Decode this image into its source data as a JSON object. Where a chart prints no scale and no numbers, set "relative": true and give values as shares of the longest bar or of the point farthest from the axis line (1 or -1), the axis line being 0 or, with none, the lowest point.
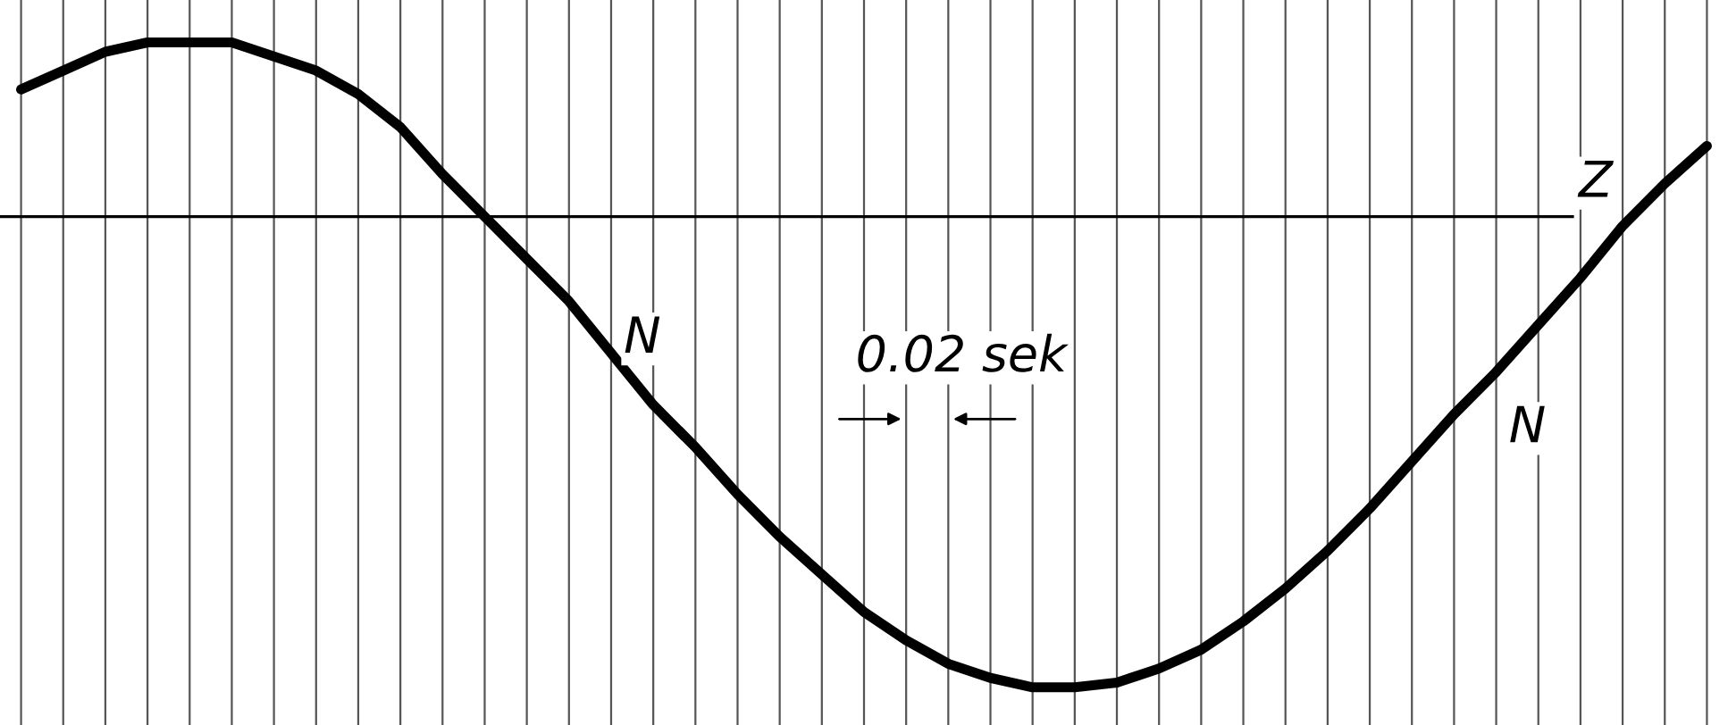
{
  "chart_data": {
    "type": "line",
    "relative": true,
    "grid": "x",
    "marker": "none",
    "line_style": "solid",
    "categories": [
      null,
      null,
      null,
      null,
      null,
      null,
      null,
      null,
      null,
      null,
      null,
      null,
      null,
      null,
      null,
      null,
      null,
      null,
      null,
      null,
      null,
      null,
      null,
      null,
      null,
      null,
      null,
      null,
      null,
      null,
      null,
      null,
      null,
      null,
      null,
      null,
      null,
      null,
      null,
      null,
      null
    ],
    "series": [
      {
        "color": "#000000",
        "values": [
          0.27,
          0.31,
          0.35,
          0.37,
          0.37,
          0.37,
          0.34,
          0.31,
          0.26,
          0.19,
          0.09,
          0.0,
          -0.09,
          -0.18,
          -0.29,
          -0.4,
          -0.49,
          -0.59,
          -0.68,
          -0.76,
          -0.84,
          -0.9,
          -0.95,
          -0.98,
          -1,
          -1,
          -0.99,
          -0.96,
          -0.92,
          -0.86,
          -0.79,
          -0.71,
          -0.62,
          -0.52,
          -0.42,
          -0.33,
          -0.23,
          -0.13,
          -0.02,
          0.07,
          0.15
        ]
      }
    ],
    "ref_lines": [
      {
        "axis": "y",
        "value": 0,
        "label": "Z",
        "color": "#000000"
      }
    ],
    "annotations": [
      "N",
      "N",
      "0.02 sek"
    ]
  }
}
